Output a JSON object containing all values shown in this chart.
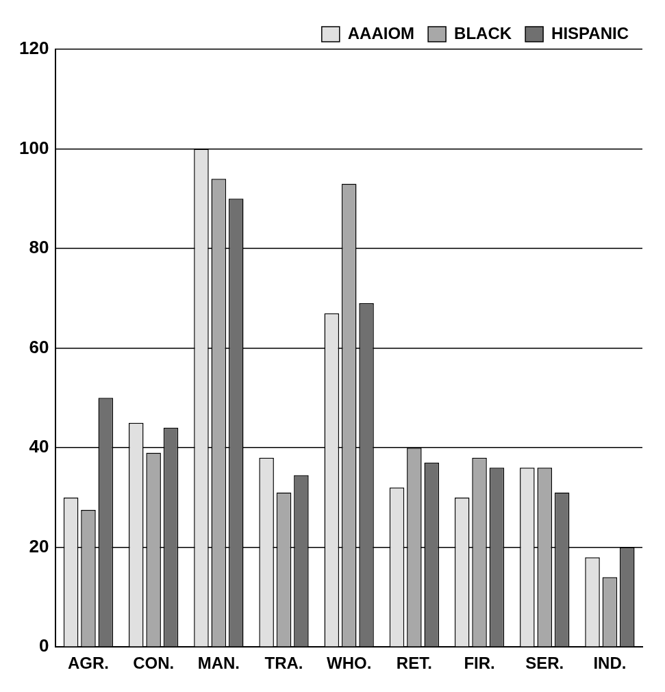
{
  "chart_data": {
    "type": "bar",
    "categories": [
      "AGR.",
      "CON.",
      "MAN.",
      "TRA.",
      "WHO.",
      "RET.",
      "FIR.",
      "SER.",
      "IND."
    ],
    "series": [
      {
        "name": "AAAIOM",
        "color": "#e0e0e0",
        "values": [
          30,
          45,
          100,
          38,
          67,
          32,
          30,
          36,
          18
        ]
      },
      {
        "name": "BLACK",
        "color": "#a8a8a8",
        "values": [
          27.5,
          39,
          94,
          31,
          93,
          40,
          38,
          36,
          14
        ]
      },
      {
        "name": "HISPANIC",
        "color": "#707070",
        "values": [
          50,
          44,
          90,
          34.5,
          69,
          37,
          36,
          31,
          20
        ]
      }
    ],
    "ylim": [
      0,
      120
    ],
    "yticks": [
      0,
      20,
      40,
      60,
      80,
      100,
      120
    ],
    "grid": "y",
    "legend": "top right"
  }
}
